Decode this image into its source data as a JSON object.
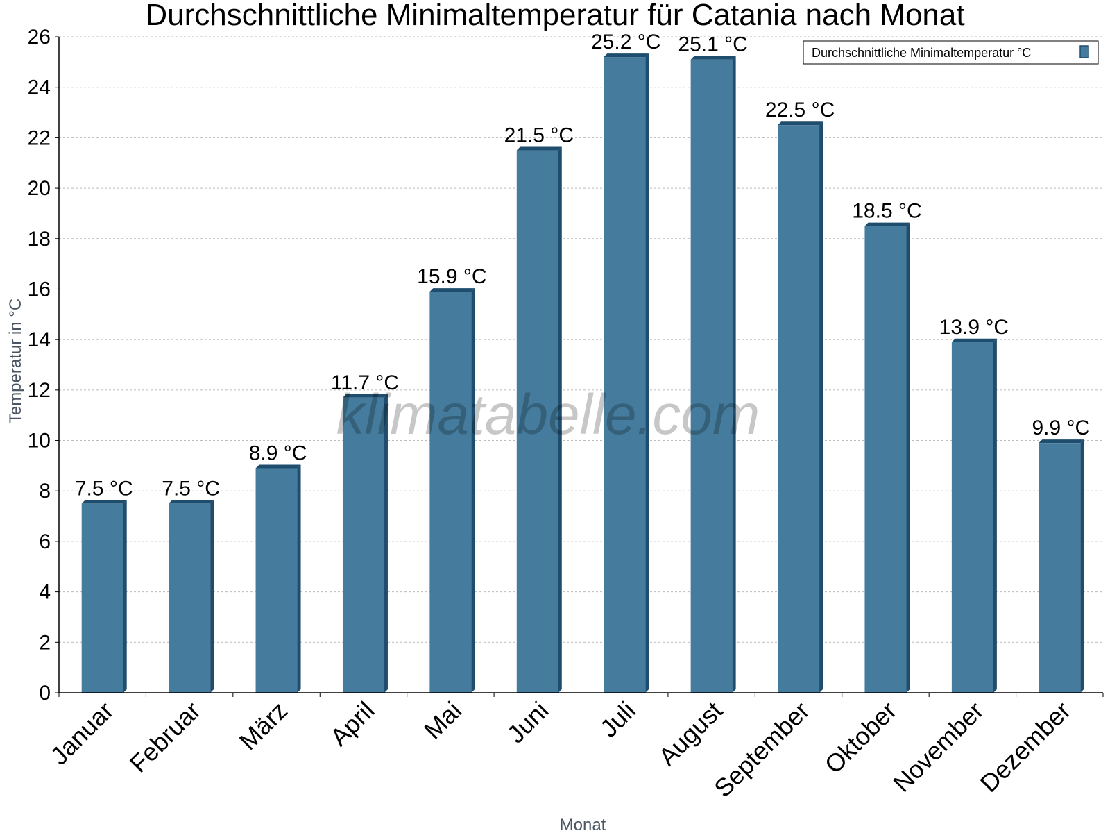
{
  "chart_data": {
    "type": "bar",
    "title": "Durchschnittliche Minimaltemperatur für Catania nach Monat",
    "xlabel": "Monat",
    "ylabel": "Temperatur in °C",
    "ylim": [
      0,
      26
    ],
    "yticks": [
      0,
      2,
      4,
      6,
      8,
      10,
      12,
      14,
      16,
      18,
      20,
      22,
      24,
      26
    ],
    "grid": true,
    "legend": {
      "position": "top-right",
      "label": "Durchschnittliche Minimaltemperatur °C"
    },
    "categories": [
      "Januar",
      "Februar",
      "März",
      "April",
      "Mai",
      "Juni",
      "Juli",
      "August",
      "September",
      "Oktober",
      "November",
      "Dezember"
    ],
    "series": [
      {
        "name": "Durchschnittliche Minimaltemperatur °C",
        "values": [
          7.5,
          7.5,
          8.9,
          11.7,
          15.9,
          21.5,
          25.2,
          25.1,
          22.5,
          18.5,
          13.9,
          9.9
        ],
        "labels": [
          "7.5 °C",
          "7.5 °C",
          "8.9 °C",
          "11.7 °C",
          "15.9 °C",
          "21.5 °C",
          "25.2 °C",
          "25.1 °C",
          "22.5 °C",
          "18.5 °C",
          "13.9 °C",
          "9.9 °C"
        ]
      }
    ],
    "colors": {
      "bar": "#457b9d",
      "bar_dark": "#1e4d6e",
      "grid": "#bbbbbb",
      "axis": "#000000"
    },
    "watermark": "klimatabelle.com"
  }
}
